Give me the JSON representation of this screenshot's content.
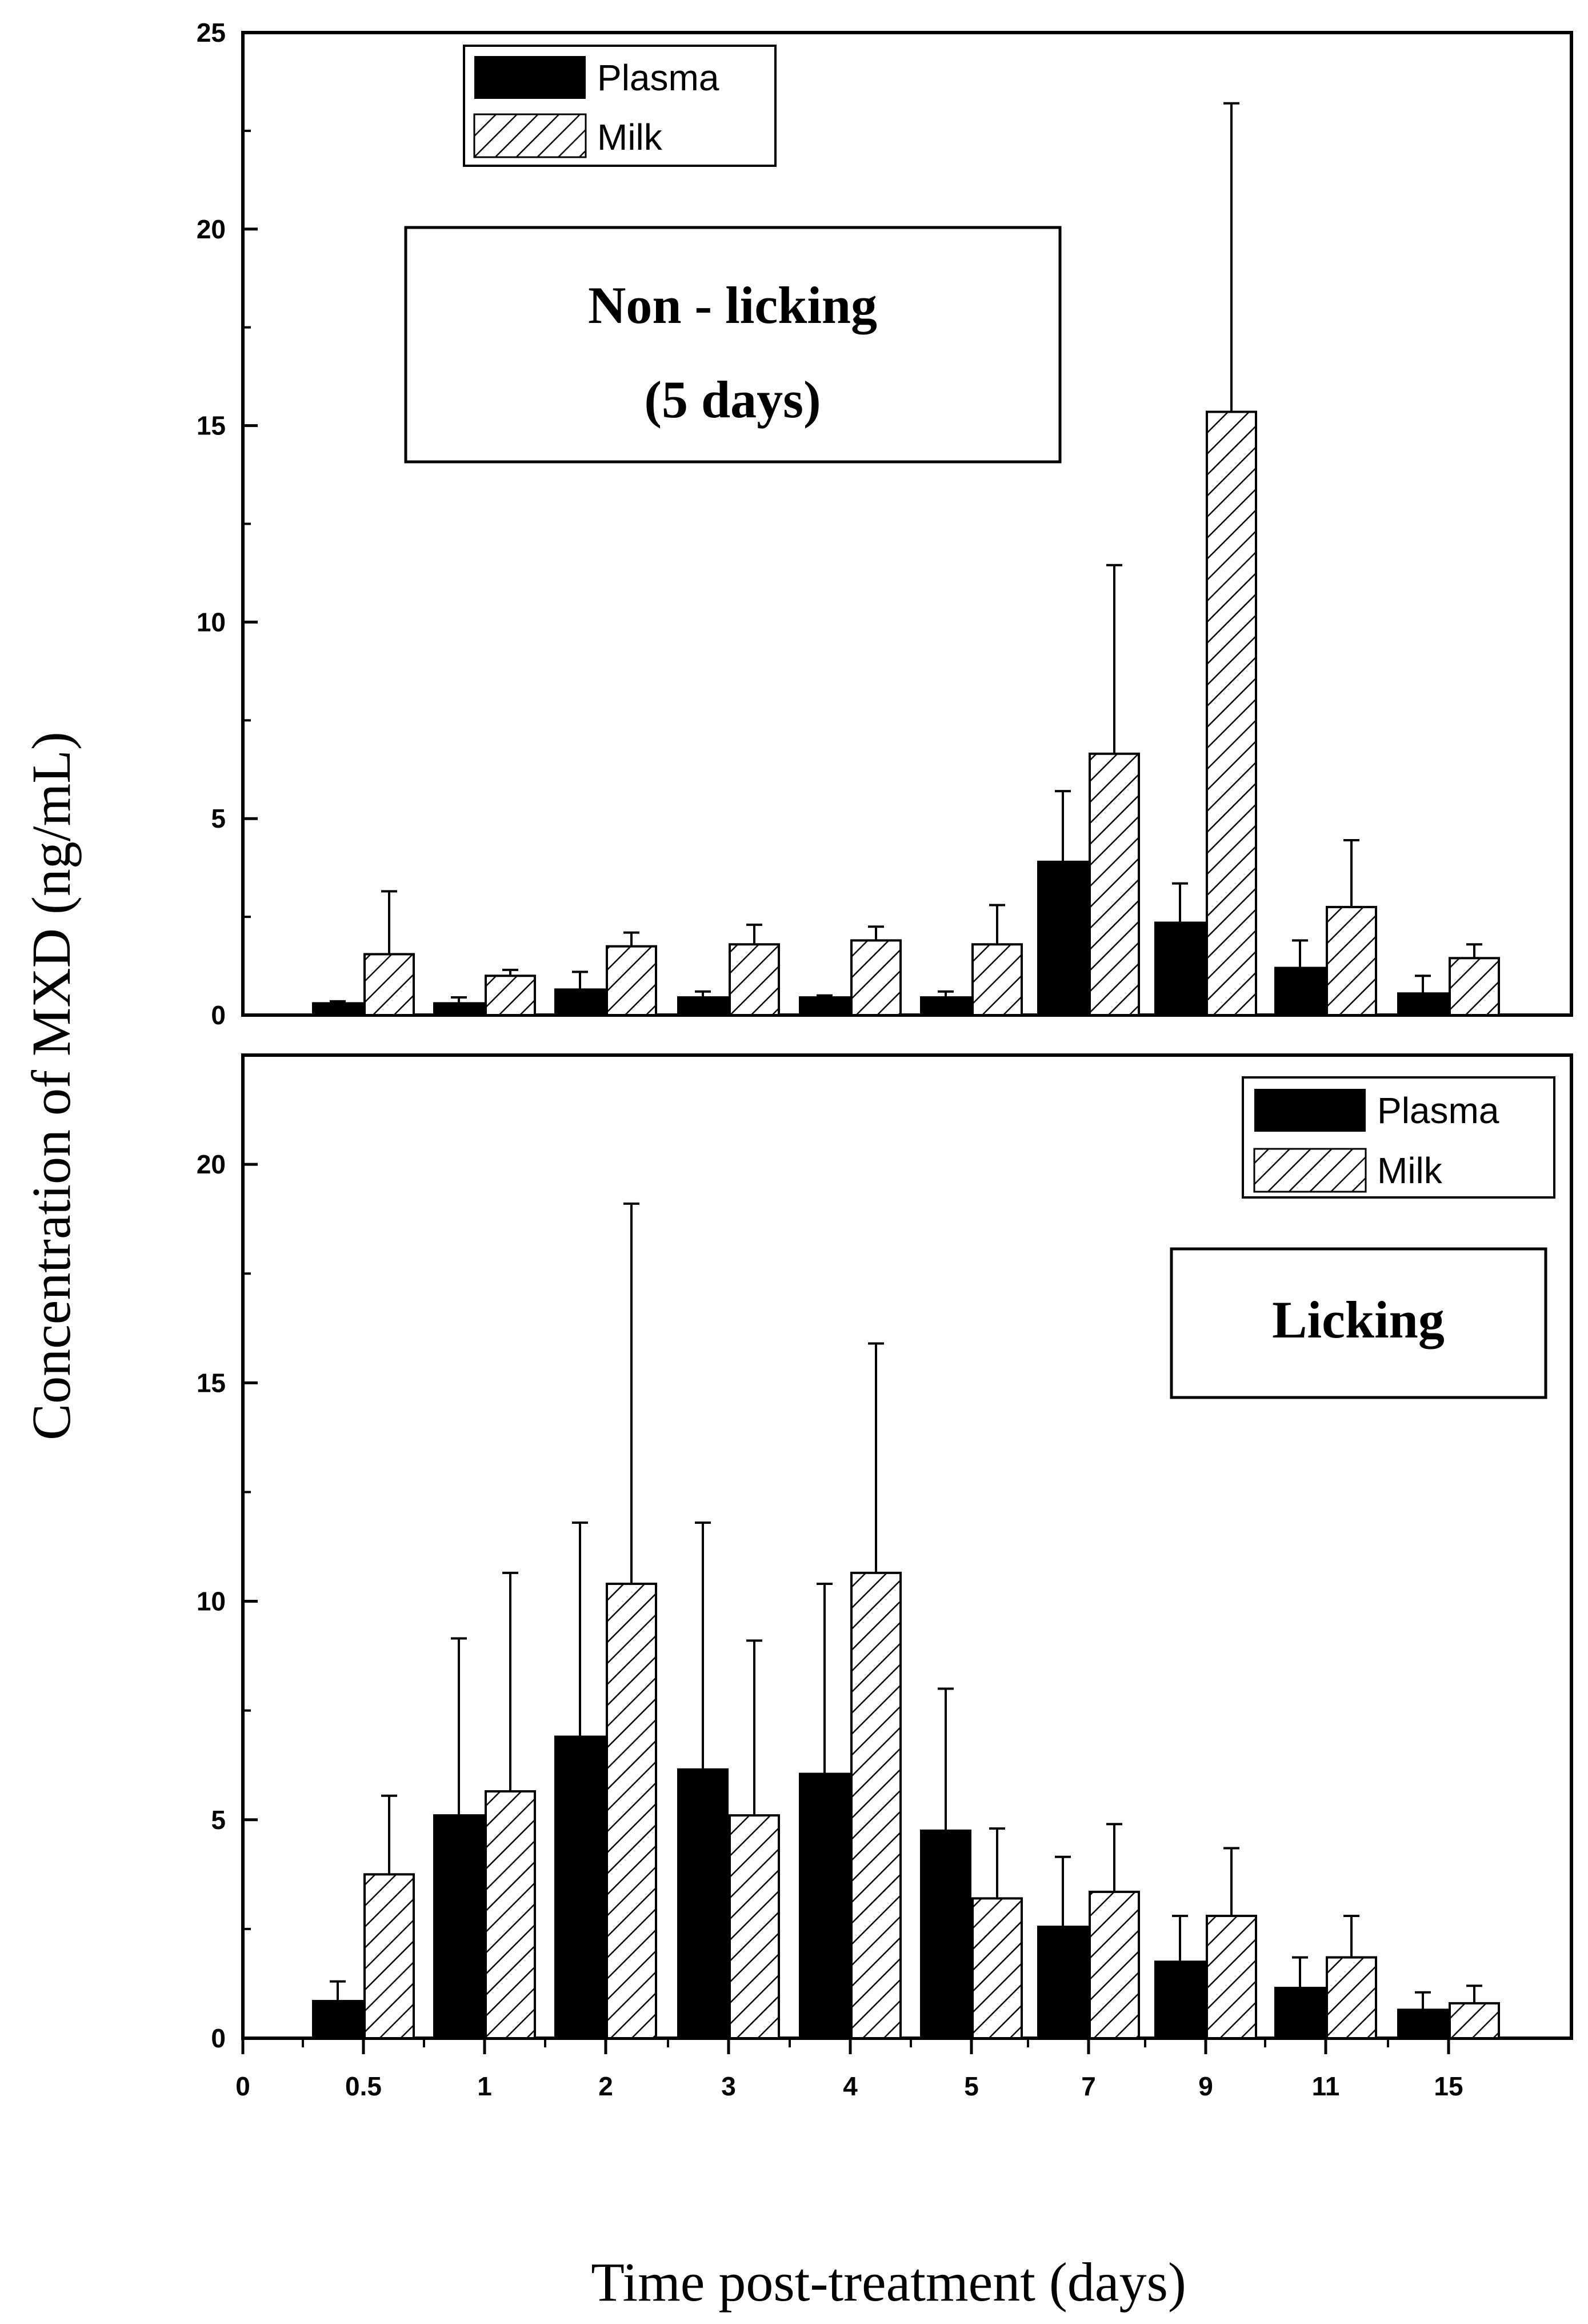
{
  "chart_data": [
    {
      "type": "bar",
      "panel": "top",
      "annotation": [
        "Non - licking",
        "(5 days)"
      ],
      "categories": [
        "0.5",
        "1",
        "2",
        "3",
        "4",
        "5",
        "7",
        "9",
        "11",
        "15"
      ],
      "series": [
        {
          "name": "Plasma",
          "values": [
            0.3,
            0.3,
            0.65,
            0.45,
            0.45,
            0.45,
            3.9,
            2.35,
            1.2,
            0.55
          ],
          "errors": [
            0.05,
            0.15,
            0.45,
            0.15,
            0.05,
            0.15,
            1.8,
            1.0,
            0.7,
            0.45
          ]
        },
        {
          "name": "Milk",
          "values": [
            1.55,
            1.0,
            1.75,
            1.8,
            1.9,
            1.8,
            6.65,
            15.35,
            2.75,
            1.45
          ],
          "errors": [
            1.6,
            0.15,
            0.35,
            0.5,
            0.35,
            1.0,
            4.8,
            7.85,
            1.7,
            0.35
          ]
        }
      ],
      "ylim": [
        0,
        25
      ],
      "yticks": [
        "0",
        "5",
        "10",
        "15",
        "20",
        "25"
      ],
      "legend": {
        "position": "top-left",
        "labels": [
          "Plasma",
          "Milk"
        ]
      }
    },
    {
      "type": "bar",
      "panel": "bottom",
      "annotation": [
        "Licking"
      ],
      "categories": [
        "0.5",
        "1",
        "2",
        "3",
        "4",
        "5",
        "7",
        "9",
        "11",
        "15"
      ],
      "series": [
        {
          "name": "Plasma",
          "values": [
            0.85,
            5.1,
            6.9,
            6.15,
            6.05,
            4.75,
            2.55,
            1.75,
            1.15,
            0.65
          ],
          "errors": [
            0.45,
            4.05,
            4.9,
            5.65,
            4.35,
            3.25,
            1.6,
            1.05,
            0.7,
            0.4
          ]
        },
        {
          "name": "Milk",
          "values": [
            3.75,
            5.65,
            10.4,
            5.1,
            10.65,
            3.2,
            3.35,
            2.8,
            1.85,
            0.8
          ],
          "errors": [
            1.8,
            5.0,
            8.7,
            4.0,
            5.25,
            1.6,
            1.55,
            1.55,
            0.95,
            0.4
          ]
        }
      ],
      "ylim": [
        0,
        22.5
      ],
      "yticks": [
        "0",
        "5",
        "10",
        "15",
        "20"
      ],
      "xticks": [
        "0",
        "0.5",
        "1",
        "2",
        "3",
        "4",
        "5",
        "7",
        "9",
        "11",
        "15"
      ],
      "legend": {
        "position": "top-right",
        "labels": [
          "Plasma",
          "Milk"
        ]
      }
    }
  ],
  "xlabel": "Time post-treatment (days)",
  "ylabel": "Concentration of MXD (ng/mL)"
}
